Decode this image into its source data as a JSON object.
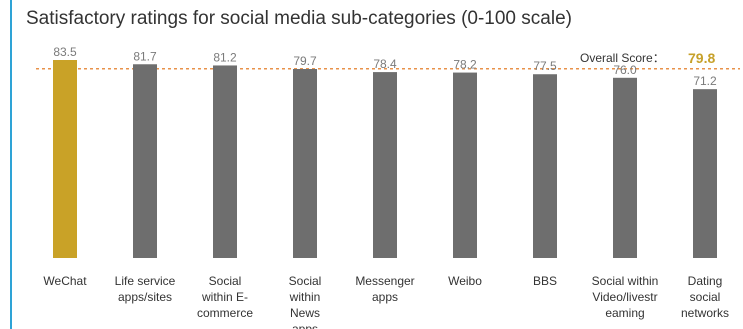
{
  "chart_data": {
    "type": "bar",
    "title": "Satisfactory ratings for social media sub-categories (0-100 scale)",
    "categories": [
      [
        "WeChat"
      ],
      [
        "Life service",
        "apps/sites"
      ],
      [
        "Social",
        "within E-",
        "commerce"
      ],
      [
        "Social",
        "within",
        "News",
        "apps"
      ],
      [
        "Messenger",
        "apps"
      ],
      [
        "Weibo"
      ],
      [
        "BBS"
      ],
      [
        "Social within",
        "Video/livestr",
        "eaming"
      ],
      [
        "Dating",
        "social",
        "networks"
      ]
    ],
    "values": [
      83.5,
      81.7,
      81.2,
      79.7,
      78.4,
      78.2,
      77.5,
      76.0,
      71.2
    ],
    "value_labels": [
      "83.5",
      "81.7",
      "81.2",
      "79.7",
      "78.4",
      "78.2",
      "77.5",
      "76.0",
      "71.2"
    ],
    "highlight_index": 0,
    "colors": {
      "bar": "#6e6e6e",
      "highlight": "#c9a227",
      "reference_line": "#e8924a",
      "reference_value": "#c7a12a"
    },
    "reference_line": {
      "label": "Overall  Score：",
      "value": 79.8,
      "value_label": "79.8"
    },
    "ylim": [
      0,
      100
    ],
    "grid": false,
    "legend": "none"
  }
}
